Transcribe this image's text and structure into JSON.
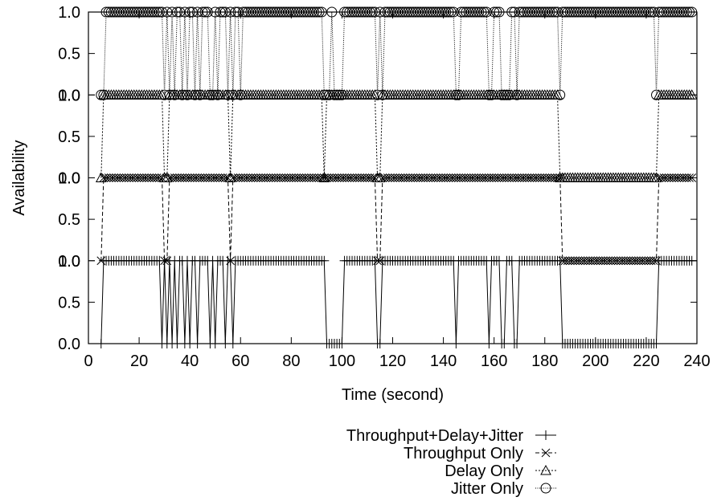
{
  "chart_data": {
    "type": "line",
    "title": "",
    "xlabel": "Time (second)",
    "ylabel": "Availability",
    "xlim": [
      0,
      240
    ],
    "x_ticks": [
      0,
      20,
      40,
      60,
      80,
      100,
      120,
      140,
      160,
      180,
      200,
      220,
      240
    ],
    "panel_ticks": [
      "0.0",
      "0.5",
      "1.0"
    ],
    "grid": false,
    "legend_position": "bottom-center",
    "sample_step_s": 1,
    "series": [
      {
        "name": "Throughput+Delay+Jitter",
        "marker": "plus",
        "line": "solid",
        "panel": 0,
        "range": [
          5,
          238
        ],
        "zero_at": [
          5,
          29,
          31,
          33,
          35,
          38,
          40,
          43,
          48,
          50,
          54,
          57,
          94,
          95,
          96,
          97,
          98,
          99,
          100,
          114,
          115,
          145,
          158,
          163,
          164,
          168,
          169,
          187,
          188,
          189,
          190,
          191,
          192,
          193,
          194,
          195,
          196,
          197,
          198,
          199,
          200,
          201,
          202,
          203,
          204,
          205,
          206,
          207,
          208,
          209,
          210,
          211,
          212,
          213,
          214,
          215,
          216,
          217,
          218,
          219,
          220,
          221,
          222,
          223,
          224
        ]
      },
      {
        "name": "Throughput Only",
        "marker": "cross",
        "line": "dashed",
        "panel": 1,
        "range": [
          5,
          238
        ],
        "zero_at": [
          5,
          30,
          31,
          56,
          114,
          115,
          187,
          188,
          189,
          190,
          191,
          192,
          193,
          194,
          195,
          196,
          197,
          198,
          199,
          200,
          201,
          202,
          203,
          204,
          205,
          206,
          207,
          208,
          209,
          210,
          211,
          212,
          213,
          214,
          215,
          216,
          217,
          218,
          219,
          220,
          221,
          222,
          223,
          224
        ]
      },
      {
        "name": "Delay Only",
        "marker": "triangle",
        "line": "dotted",
        "panel": 2,
        "range": [
          5,
          238
        ],
        "zero_at": [
          5,
          30,
          31,
          56,
          93,
          114,
          115,
          186,
          187,
          188,
          189,
          190,
          191,
          192,
          193,
          194,
          195,
          196,
          197,
          198,
          199,
          200,
          201,
          202,
          203,
          204,
          205,
          206,
          207,
          208,
          209,
          210,
          211,
          212,
          213,
          214,
          215,
          216,
          217,
          218,
          219,
          220,
          221,
          222,
          223,
          224
        ]
      },
      {
        "name": "Jitter Only",
        "marker": "circle",
        "line": "dense-dotted",
        "panel": 3,
        "range": [
          5,
          238
        ],
        "zero_at": [
          5,
          6,
          30,
          32,
          34,
          37,
          39,
          42,
          44,
          48,
          49,
          51,
          55,
          57,
          60,
          93,
          94,
          95,
          97,
          98,
          99,
          100,
          114,
          116,
          145,
          146,
          158,
          159,
          163,
          164,
          165,
          166,
          169,
          186,
          224
        ]
      }
    ]
  }
}
